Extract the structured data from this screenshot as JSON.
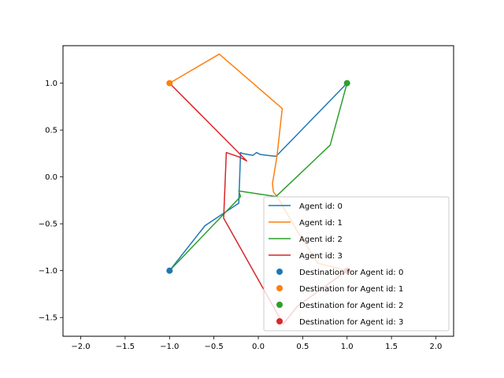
{
  "chart_data": {
    "type": "line",
    "title": "",
    "xlabel": "",
    "ylabel": "",
    "xlim": [
      -2.2,
      2.2
    ],
    "ylim": [
      -1.7,
      1.4
    ],
    "x_ticks": [
      -2.0,
      -1.5,
      -1.0,
      -0.5,
      0.0,
      0.5,
      1.0,
      1.5,
      2.0
    ],
    "y_ticks": [
      -1.5,
      -1.0,
      -0.5,
      0.0,
      0.5,
      1.0
    ],
    "x_tick_labels": [
      "−2.0",
      "−1.5",
      "−1.0",
      "−0.5",
      "0.0",
      "0.5",
      "1.0",
      "1.5",
      "2.0"
    ],
    "y_tick_labels": [
      "−1.5",
      "−1.0",
      "−0.5",
      "0.0",
      "0.5",
      "1.0"
    ],
    "grid": false,
    "legend_position": "lower-right",
    "series": [
      {
        "name": "Agent id: 0",
        "color": "#1f77b4",
        "x": [
          -1.0,
          -0.6,
          -0.22,
          -0.2,
          -0.18,
          -0.12,
          -0.06,
          -0.02,
          0.02,
          0.1,
          0.2,
          1.0
        ],
        "y": [
          -1.0,
          -0.52,
          -0.28,
          0.26,
          0.25,
          0.24,
          0.23,
          0.26,
          0.24,
          0.23,
          0.22,
          1.0
        ]
      },
      {
        "name": "Agent id: 1",
        "color": "#ff7f0e",
        "x": [
          -1.0,
          -0.44,
          0.27,
          0.21,
          0.16,
          0.17,
          0.22,
          0.44,
          0.67,
          1.0
        ],
        "y": [
          1.0,
          1.31,
          0.73,
          0.22,
          -0.07,
          -0.16,
          -0.22,
          -0.58,
          -0.92,
          -1.0
        ]
      },
      {
        "name": "Agent id: 2",
        "color": "#2ca02c",
        "x": [
          1.0,
          0.81,
          0.2,
          -0.22,
          -0.2,
          -1.0
        ],
        "y": [
          1.0,
          0.34,
          -0.21,
          -0.15,
          -0.21,
          -1.0
        ]
      },
      {
        "name": "Agent id: 3",
        "color": "#d62728",
        "x": [
          -1.0,
          -0.13,
          -0.21,
          -0.36,
          -0.39,
          0.28,
          0.44,
          1.0
        ],
        "y": [
          1.0,
          0.17,
          0.21,
          0.26,
          -0.44,
          -1.57,
          -1.38,
          -1.0
        ]
      }
    ],
    "destinations": [
      {
        "name": "Destination for Agent id: 0",
        "color": "#1f77b4",
        "x": -1.0,
        "y": -1.0
      },
      {
        "name": "Destination for Agent id: 1",
        "color": "#ff7f0e",
        "x": -1.0,
        "y": 1.0
      },
      {
        "name": "Destination for Agent id: 2",
        "color": "#2ca02c",
        "x": 1.0,
        "y": 1.0
      },
      {
        "name": "Destination for Agent id: 3",
        "color": "#d62728",
        "x": 1.0,
        "y": -1.0
      }
    ]
  }
}
